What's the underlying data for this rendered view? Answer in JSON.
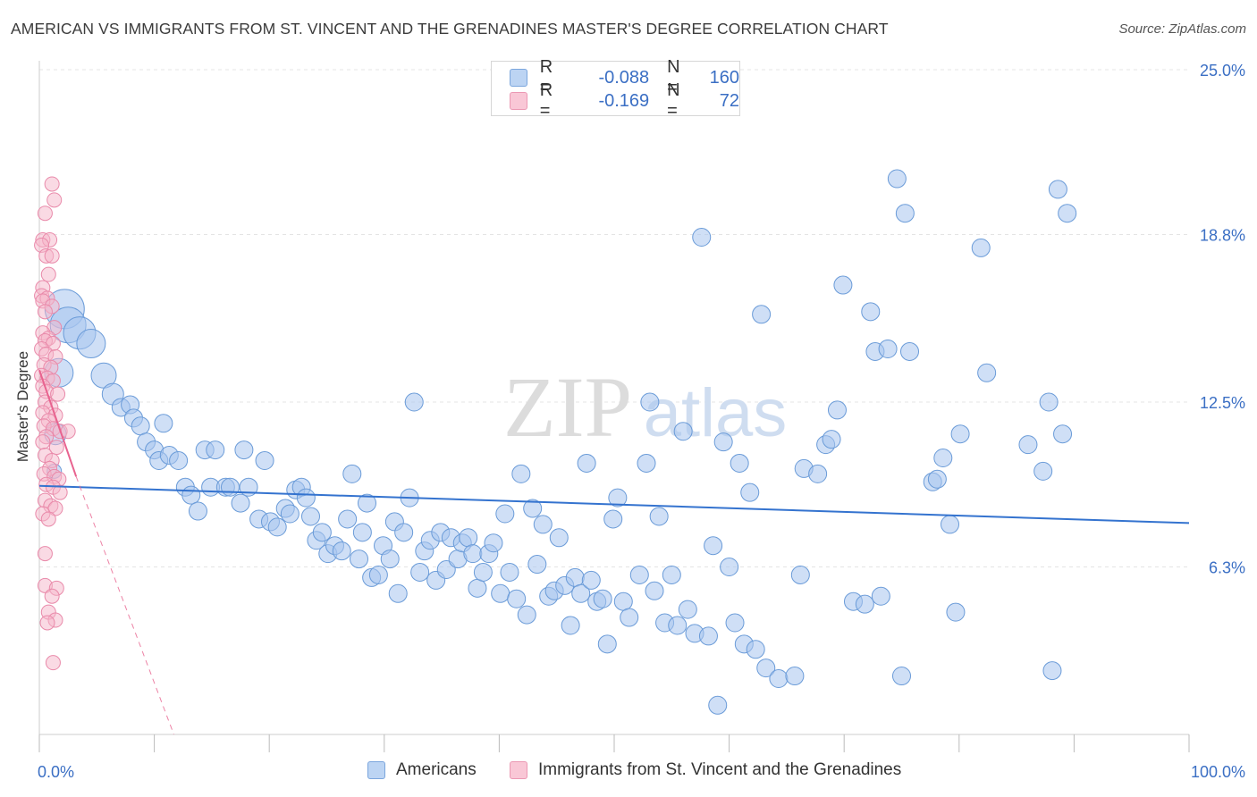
{
  "title": "AMERICAN VS IMMIGRANTS FROM ST. VINCENT AND THE GRENADINES MASTER'S DEGREE CORRELATION CHART",
  "source": "Source: ZipAtlas.com",
  "watermark": {
    "zip": "ZIP",
    "atlas": "atlas"
  },
  "legend": {
    "r_label": "R =",
    "n_label": "N =",
    "rows": [
      {
        "r": "-0.088",
        "n": "160"
      },
      {
        "r": "-0.169",
        "n": "72"
      }
    ]
  },
  "bottom_legend": [
    "Americans",
    "Immigrants from St. Vincent and the Grenadines"
  ],
  "colors": {
    "americans_fill": "#a7c5ee",
    "americans_stroke": "#6a9bd8",
    "americans_line": "#3473cf",
    "immigrants_fill": "#f6b6c9",
    "immigrants_stroke": "#e98aaa",
    "immigrants_line": "#e8638f",
    "axis_label": "#3b6fc4",
    "grid": "#e4e4e4"
  },
  "chart_data": {
    "type": "scatter",
    "title": "AMERICAN VS IMMIGRANTS FROM ST. VINCENT AND THE GRENADINES MASTER'S DEGREE CORRELATION CHART",
    "xlabel": "",
    "ylabel": "Master's Degree",
    "xlim": [
      0,
      100
    ],
    "ylim": [
      0,
      25
    ],
    "x_tick_labels": [
      "0.0%",
      "100.0%"
    ],
    "y_ticks": [
      6.3,
      12.5,
      18.8,
      25.0
    ],
    "y_tick_labels": [
      "6.3%",
      "12.5%",
      "18.8%",
      "25.0%"
    ],
    "series": [
      {
        "name": "Americans",
        "trend": {
          "x": [
            0,
            100
          ],
          "y": [
            9.35,
            7.95
          ]
        },
        "points": [
          [
            1.3,
            9.9,
            8
          ],
          [
            2.2,
            16.0,
            22
          ],
          [
            2.5,
            15.4,
            20
          ],
          [
            3.5,
            15.1,
            18
          ],
          [
            4.5,
            14.7,
            16
          ],
          [
            1.7,
            13.6,
            16
          ],
          [
            1.4,
            11.3,
            12
          ],
          [
            5.6,
            13.5,
            14
          ],
          [
            6.4,
            12.8,
            12
          ],
          [
            7.1,
            12.3,
            10
          ],
          [
            7.9,
            12.4,
            10
          ],
          [
            8.2,
            11.9,
            10
          ],
          [
            8.8,
            11.6,
            10
          ],
          [
            10.8,
            11.7,
            10
          ],
          [
            9.3,
            11.0,
            10
          ],
          [
            10.0,
            10.7,
            10
          ],
          [
            10.4,
            10.3,
            10
          ],
          [
            11.3,
            10.5,
            10
          ],
          [
            12.1,
            10.3,
            10
          ],
          [
            12.7,
            9.3,
            10
          ],
          [
            13.2,
            9.0,
            10
          ],
          [
            13.8,
            8.4,
            10
          ],
          [
            14.4,
            10.7,
            10
          ],
          [
            15.3,
            10.7,
            10
          ],
          [
            14.9,
            9.3,
            10
          ],
          [
            16.2,
            9.3,
            10
          ],
          [
            16.6,
            9.3,
            10
          ],
          [
            17.5,
            8.7,
            10
          ],
          [
            17.8,
            10.7,
            10
          ],
          [
            18.2,
            9.3,
            10
          ],
          [
            19.1,
            8.1,
            10
          ],
          [
            19.6,
            10.3,
            10
          ],
          [
            20.1,
            8.0,
            10
          ],
          [
            20.7,
            7.8,
            10
          ],
          [
            21.4,
            8.5,
            10
          ],
          [
            21.8,
            8.3,
            10
          ],
          [
            22.3,
            9.2,
            10
          ],
          [
            22.8,
            9.3,
            10
          ],
          [
            23.2,
            8.9,
            10
          ],
          [
            23.6,
            8.2,
            10
          ],
          [
            24.1,
            7.3,
            10
          ],
          [
            24.6,
            7.6,
            10
          ],
          [
            25.1,
            6.8,
            10
          ],
          [
            25.7,
            7.1,
            10
          ],
          [
            26.3,
            6.9,
            10
          ],
          [
            26.8,
            8.1,
            10
          ],
          [
            27.2,
            9.8,
            10
          ],
          [
            27.8,
            6.6,
            10
          ],
          [
            28.1,
            7.6,
            10
          ],
          [
            28.5,
            8.7,
            10
          ],
          [
            28.9,
            5.9,
            10
          ],
          [
            29.5,
            6.0,
            10
          ],
          [
            29.9,
            7.1,
            10
          ],
          [
            30.5,
            6.6,
            10
          ],
          [
            30.9,
            8.0,
            10
          ],
          [
            31.2,
            5.3,
            10
          ],
          [
            31.7,
            7.6,
            10
          ],
          [
            32.2,
            8.9,
            10
          ],
          [
            32.6,
            12.5,
            10
          ],
          [
            33.1,
            6.1,
            10
          ],
          [
            33.5,
            6.9,
            10
          ],
          [
            34.0,
            7.3,
            10
          ],
          [
            34.5,
            5.8,
            10
          ],
          [
            34.9,
            7.6,
            10
          ],
          [
            35.4,
            6.2,
            10
          ],
          [
            35.8,
            7.4,
            10
          ],
          [
            36.4,
            6.6,
            10
          ],
          [
            36.8,
            7.2,
            10
          ],
          [
            37.3,
            7.4,
            10
          ],
          [
            37.7,
            6.8,
            10
          ],
          [
            38.1,
            5.5,
            10
          ],
          [
            38.6,
            6.1,
            10
          ],
          [
            39.1,
            6.8,
            10
          ],
          [
            39.5,
            7.2,
            10
          ],
          [
            40.1,
            5.3,
            10
          ],
          [
            40.5,
            8.3,
            10
          ],
          [
            40.9,
            6.1,
            10
          ],
          [
            41.5,
            5.1,
            10
          ],
          [
            41.9,
            9.8,
            10
          ],
          [
            42.4,
            4.5,
            10
          ],
          [
            42.9,
            8.5,
            10
          ],
          [
            43.3,
            6.4,
            10
          ],
          [
            43.8,
            7.9,
            10
          ],
          [
            44.3,
            5.2,
            10
          ],
          [
            44.8,
            5.4,
            10
          ],
          [
            45.2,
            7.4,
            10
          ],
          [
            45.7,
            5.6,
            10
          ],
          [
            46.2,
            4.1,
            10
          ],
          [
            46.6,
            5.9,
            10
          ],
          [
            47.1,
            5.3,
            10
          ],
          [
            47.6,
            10.2,
            10
          ],
          [
            48.0,
            5.8,
            10
          ],
          [
            48.5,
            5.0,
            10
          ],
          [
            49.0,
            5.1,
            10
          ],
          [
            49.4,
            3.4,
            10
          ],
          [
            49.9,
            8.1,
            10
          ],
          [
            50.3,
            8.9,
            10
          ],
          [
            50.8,
            5.0,
            10
          ],
          [
            51.3,
            4.4,
            10
          ],
          [
            52.2,
            6.0,
            10
          ],
          [
            52.8,
            10.2,
            10
          ],
          [
            53.1,
            12.5,
            10
          ],
          [
            53.5,
            5.4,
            10
          ],
          [
            53.9,
            8.2,
            10
          ],
          [
            54.4,
            4.2,
            10
          ],
          [
            55.0,
            6.0,
            10
          ],
          [
            55.5,
            4.1,
            10
          ],
          [
            56.0,
            11.4,
            10
          ],
          [
            56.4,
            4.7,
            10
          ],
          [
            57.0,
            3.8,
            10
          ],
          [
            57.6,
            18.7,
            10
          ],
          [
            58.2,
            3.7,
            10
          ],
          [
            58.6,
            7.1,
            10
          ],
          [
            59.0,
            1.1,
            10
          ],
          [
            59.5,
            11.0,
            10
          ],
          [
            60.0,
            6.3,
            10
          ],
          [
            60.5,
            4.2,
            10
          ],
          [
            60.9,
            10.2,
            10
          ],
          [
            61.3,
            3.4,
            10
          ],
          [
            61.8,
            9.1,
            10
          ],
          [
            62.3,
            3.2,
            10
          ],
          [
            62.8,
            15.8,
            10
          ],
          [
            63.2,
            2.5,
            10
          ],
          [
            64.3,
            2.1,
            10
          ],
          [
            65.7,
            2.2,
            10
          ],
          [
            66.2,
            6.0,
            10
          ],
          [
            66.5,
            10.0,
            10
          ],
          [
            67.7,
            9.8,
            10
          ],
          [
            68.4,
            10.9,
            10
          ],
          [
            68.9,
            11.1,
            10
          ],
          [
            69.4,
            12.2,
            10
          ],
          [
            69.9,
            16.9,
            10
          ],
          [
            70.8,
            5.0,
            10
          ],
          [
            71.8,
            4.9,
            10
          ],
          [
            72.3,
            15.9,
            10
          ],
          [
            72.7,
            14.4,
            10
          ],
          [
            73.2,
            5.2,
            10
          ],
          [
            73.8,
            14.5,
            10
          ],
          [
            74.6,
            20.9,
            10
          ],
          [
            75.0,
            2.2,
            10
          ],
          [
            75.3,
            19.6,
            10
          ],
          [
            75.7,
            14.4,
            10
          ],
          [
            77.7,
            9.5,
            10
          ],
          [
            78.1,
            9.6,
            10
          ],
          [
            78.6,
            10.4,
            10
          ],
          [
            79.2,
            7.9,
            10
          ],
          [
            79.7,
            4.6,
            10
          ],
          [
            80.1,
            11.3,
            10
          ],
          [
            81.9,
            18.3,
            10
          ],
          [
            82.4,
            13.6,
            10
          ],
          [
            86.0,
            10.9,
            10
          ],
          [
            87.3,
            9.9,
            10
          ],
          [
            87.8,
            12.5,
            10
          ],
          [
            88.1,
            2.4,
            10
          ],
          [
            88.6,
            20.5,
            10
          ],
          [
            89.0,
            11.3,
            10
          ],
          [
            89.4,
            19.6,
            10
          ]
        ]
      },
      {
        "name": "Immigrants from St. Vincent and the Grenadines",
        "trend": {
          "x": [
            0,
            3.2
          ],
          "y": [
            13.7,
            9.7
          ]
        },
        "trend_ext": {
          "x": [
            3.2,
            11.7
          ],
          "y": [
            9.7,
            0
          ]
        },
        "points": [
          [
            1.1,
            20.7,
            8
          ],
          [
            1.3,
            20.1,
            8
          ],
          [
            0.5,
            19.6,
            8
          ],
          [
            0.3,
            18.6,
            8
          ],
          [
            0.9,
            18.6,
            8
          ],
          [
            0.2,
            18.4,
            8
          ],
          [
            0.6,
            18.0,
            8
          ],
          [
            1.1,
            18.0,
            8
          ],
          [
            0.8,
            17.3,
            8
          ],
          [
            0.3,
            16.8,
            8
          ],
          [
            0.2,
            16.5,
            8
          ],
          [
            0.7,
            16.4,
            8
          ],
          [
            0.3,
            16.3,
            8
          ],
          [
            1.1,
            16.1,
            8
          ],
          [
            0.5,
            15.9,
            8
          ],
          [
            1.3,
            15.3,
            8
          ],
          [
            0.3,
            15.1,
            8
          ],
          [
            0.8,
            14.9,
            8
          ],
          [
            0.5,
            14.8,
            8
          ],
          [
            1.2,
            14.7,
            8
          ],
          [
            0.2,
            14.5,
            8
          ],
          [
            0.6,
            14.3,
            8
          ],
          [
            1.4,
            14.2,
            8
          ],
          [
            0.4,
            13.9,
            8
          ],
          [
            1.0,
            13.8,
            8
          ],
          [
            0.2,
            13.5,
            8
          ],
          [
            0.7,
            13.4,
            8
          ],
          [
            1.2,
            13.3,
            8
          ],
          [
            0.3,
            13.1,
            8
          ],
          [
            0.6,
            12.9,
            8
          ],
          [
            1.6,
            12.8,
            8
          ],
          [
            0.5,
            12.5,
            8
          ],
          [
            1.0,
            12.3,
            8
          ],
          [
            0.3,
            12.1,
            8
          ],
          [
            1.4,
            12.0,
            8
          ],
          [
            0.8,
            11.8,
            8
          ],
          [
            0.4,
            11.6,
            8
          ],
          [
            1.2,
            11.5,
            8
          ],
          [
            1.8,
            11.4,
            8
          ],
          [
            2.5,
            11.4,
            8
          ],
          [
            0.6,
            11.2,
            8
          ],
          [
            0.3,
            11.0,
            8
          ],
          [
            1.5,
            10.8,
            8
          ],
          [
            0.5,
            10.5,
            8
          ],
          [
            1.1,
            10.3,
            8
          ],
          [
            0.9,
            10.0,
            8
          ],
          [
            0.4,
            9.8,
            8
          ],
          [
            1.3,
            9.7,
            8
          ],
          [
            1.7,
            9.6,
            8
          ],
          [
            0.6,
            9.4,
            8
          ],
          [
            1.2,
            9.3,
            8
          ],
          [
            1.8,
            9.1,
            8
          ],
          [
            0.5,
            8.8,
            8
          ],
          [
            1.0,
            8.6,
            8
          ],
          [
            1.4,
            8.5,
            8
          ],
          [
            0.3,
            8.3,
            8
          ],
          [
            0.8,
            8.1,
            8
          ],
          [
            0.5,
            6.8,
            8
          ],
          [
            0.5,
            5.6,
            8
          ],
          [
            1.5,
            5.5,
            8
          ],
          [
            1.1,
            5.2,
            8
          ],
          [
            0.8,
            4.6,
            8
          ],
          [
            1.4,
            4.3,
            8
          ],
          [
            0.7,
            4.2,
            8
          ],
          [
            1.2,
            2.7,
            8
          ]
        ]
      }
    ]
  }
}
